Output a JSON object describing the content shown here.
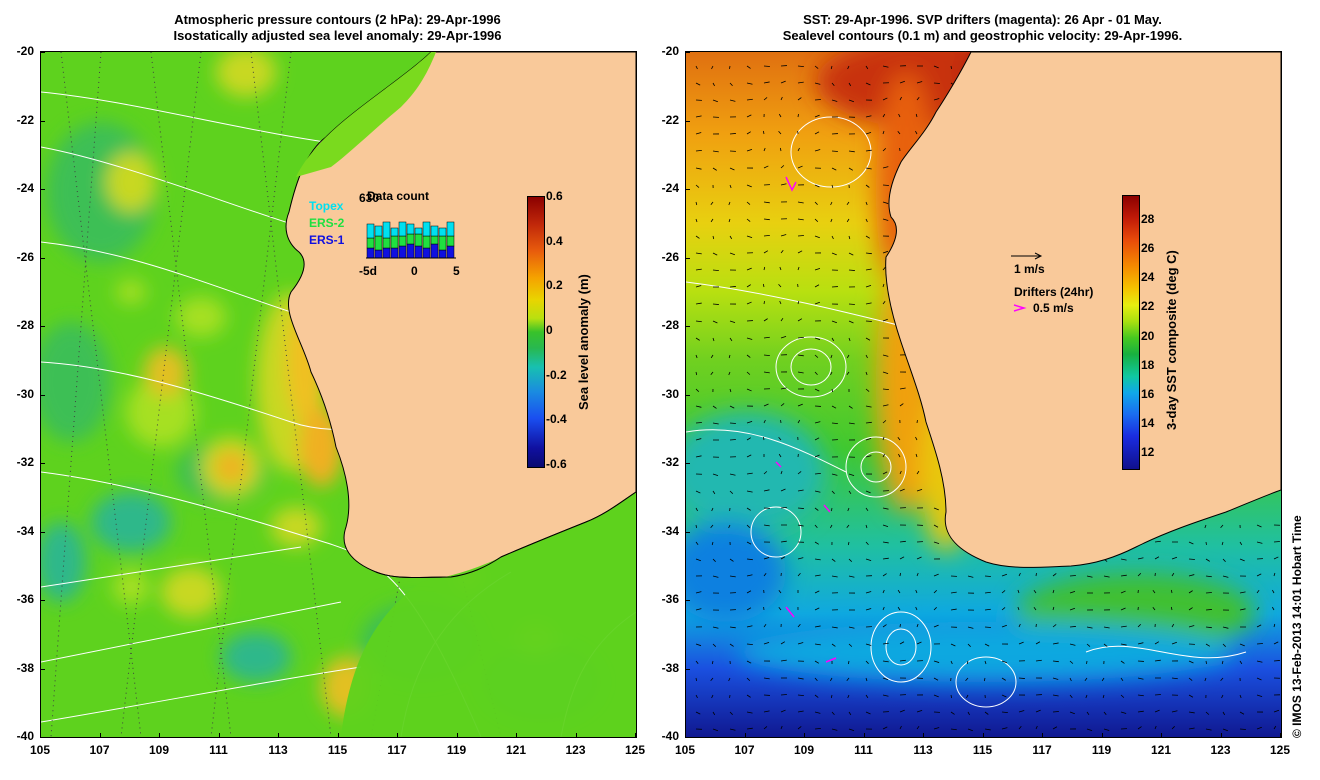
{
  "left_panel": {
    "title_line1": "Atmospheric pressure contours (2 hPa): 29-Apr-1996",
    "title_line2": "Isostatically adjusted sea level anomaly: 29-Apr-1996",
    "colorbar": {
      "label": "Sea level anomaly (m)",
      "ticks": [
        "0.6",
        "0.4",
        "0.2",
        "0",
        "-0.2",
        "-0.4",
        "-0.6"
      ],
      "range": [
        -0.6,
        0.6
      ]
    },
    "data_count": {
      "title": "Data count",
      "max_label": "630",
      "legend": [
        {
          "name": "Topex",
          "color": "#00e0f0"
        },
        {
          "name": "ERS-2",
          "color": "#20e040"
        },
        {
          "name": "ERS-1",
          "color": "#1010e0"
        }
      ],
      "x_ticks": [
        "-5d",
        "0",
        "5"
      ]
    }
  },
  "right_panel": {
    "title_line1": "SST: 29-Apr-1996. SVP drifters (magenta): 26 Apr - 01 May.",
    "title_line2": "Sealevel contours (0.1 m) and geostrophic velocity: 29-Apr-1996.",
    "colorbar": {
      "label": "3-day SST composite (deg C)",
      "ticks": [
        "28",
        "26",
        "24",
        "22",
        "20",
        "18",
        "16",
        "14",
        "12"
      ],
      "range": [
        11,
        29.5
      ]
    },
    "velocity_legend": {
      "label": "1 m/s"
    },
    "drifter_legend": {
      "title": "Drifters (24hr)",
      "label": "0.5 m/s",
      "color": "#ff00ff"
    }
  },
  "axes": {
    "lat_ticks": [
      "-20",
      "-22",
      "-24",
      "-26",
      "-28",
      "-30",
      "-32",
      "-34",
      "-36",
      "-38",
      "-40"
    ],
    "lon_ticks": [
      "105",
      "107",
      "109",
      "111",
      "113",
      "115",
      "117",
      "119",
      "121",
      "123",
      "125"
    ]
  },
  "colors": {
    "land": "#f9c99a",
    "ocean_green": "#5ed21e",
    "ocean_light": "#8ee220"
  },
  "credit": "© IMOS 13-Feb-2013 14:01 Hobart Time"
}
